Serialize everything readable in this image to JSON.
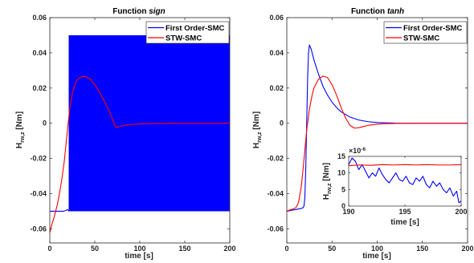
{
  "chart_data": [
    {
      "type": "line",
      "title_prefix": "Function",
      "title_emph": "sign",
      "xlabel": "time [s]",
      "ylabel_main": "H",
      "ylabel_sub": "rw,z",
      "ylabel_unit": " [Nm]",
      "xlim": [
        0,
        200
      ],
      "ylim": [
        -0.068,
        0.06
      ],
      "xticks": [
        0,
        50,
        100,
        150,
        200
      ],
      "xtick_labels": [
        "0",
        "50",
        "100",
        "150",
        "200"
      ],
      "yticks": [
        -0.06,
        -0.04,
        -0.02,
        0,
        0.02,
        0.04,
        0.06
      ],
      "ytick_labels": [
        "-0.06",
        "-0.04",
        "-0.02",
        "0",
        "0.02",
        "0.04",
        "0.06"
      ],
      "legend_position": "top-right",
      "series": [
        {
          "name": "First Order-SMC",
          "color": "#0000ff",
          "x": [
            0,
            5,
            10,
            15,
            18,
            20
          ],
          "y": [
            -0.05,
            -0.05,
            -0.05,
            -0.05,
            -0.0495,
            -0.049
          ],
          "chattering_band": {
            "x_start": 21,
            "x_end": 200,
            "y_min": -0.05,
            "y_max": 0.05
          }
        },
        {
          "name": "STW-SMC",
          "color": "#ff0000",
          "x": [
            0,
            2,
            5,
            8,
            10,
            13,
            16,
            18,
            20,
            22,
            25,
            28,
            30,
            35,
            40,
            45,
            50,
            55,
            60,
            65,
            70,
            72,
            74,
            76,
            80,
            85,
            90,
            100,
            110,
            120,
            140,
            160,
            180,
            200
          ],
          "y": [
            -0.062,
            -0.058,
            -0.053,
            -0.047,
            -0.042,
            -0.033,
            -0.022,
            -0.012,
            -0.002,
            0.008,
            0.017,
            0.022,
            0.0245,
            0.0265,
            0.0265,
            0.025,
            0.022,
            0.018,
            0.013,
            0.008,
            0.002,
            -0.001,
            -0.0025,
            -0.002,
            -0.0015,
            -0.001,
            -0.0007,
            -0.0004,
            -0.0002,
            -0.0001,
            0,
            0,
            0,
            0
          ]
        }
      ]
    },
    {
      "type": "line",
      "title_prefix": "Function",
      "title_emph": "tanh",
      "xlabel": "time [s]",
      "ylabel_main": "H",
      "ylabel_sub": "rw,z",
      "ylabel_unit": " [Nm]",
      "xlim": [
        0,
        200
      ],
      "ylim": [
        -0.068,
        0.06
      ],
      "xticks": [
        0,
        50,
        100,
        150,
        200
      ],
      "xtick_labels": [
        "0",
        "50",
        "100",
        "150",
        "200"
      ],
      "yticks": [
        -0.06,
        -0.04,
        -0.02,
        0,
        0.02,
        0.04,
        0.06
      ],
      "ytick_labels": [
        "-0.06",
        "-0.04",
        "-0.02",
        "0",
        "0.02",
        "0.04",
        "0.06"
      ],
      "legend_position": "top-right",
      "series": [
        {
          "name": "First Order-SMC",
          "color": "#0000ff",
          "x": [
            0,
            5,
            10,
            15,
            18,
            19,
            20,
            21,
            22,
            23,
            24,
            25,
            27,
            30,
            35,
            40,
            45,
            50,
            55,
            60,
            70,
            80,
            90,
            100,
            120,
            140,
            160,
            200
          ],
          "y": [
            -0.05,
            -0.0495,
            -0.049,
            -0.0485,
            -0.048,
            -0.047,
            -0.042,
            -0.025,
            0.0,
            0.025,
            0.04,
            0.0445,
            0.042,
            0.036,
            0.028,
            0.021,
            0.016,
            0.012,
            0.009,
            0.0065,
            0.0035,
            0.0018,
            0.0009,
            0.0004,
            0.0001,
            3e-05,
            1e-05,
            0.0
          ]
        },
        {
          "name": "STW-SMC",
          "color": "#ff0000",
          "x": [
            0,
            2,
            5,
            8,
            10,
            13,
            16,
            18,
            20,
            22,
            25,
            28,
            30,
            35,
            40,
            45,
            50,
            55,
            60,
            65,
            70,
            75,
            80,
            85,
            90,
            100,
            110,
            120,
            140,
            160,
            180,
            200
          ],
          "y": [
            -0.05,
            -0.0495,
            -0.049,
            -0.0485,
            -0.048,
            -0.045,
            -0.036,
            -0.026,
            -0.015,
            -0.004,
            0.008,
            0.016,
            0.02,
            0.025,
            0.0268,
            0.026,
            0.022,
            0.016,
            0.009,
            0.003,
            -0.0012,
            -0.0028,
            -0.0025,
            -0.0018,
            -0.0012,
            -0.0005,
            -0.0002,
            -0.0001,
            0,
            0,
            0,
            0
          ]
        }
      ],
      "inset": {
        "xlim": [
          190,
          200
        ],
        "ylim": [
          0,
          15
        ],
        "scale_label": "×10",
        "scale_exp": "-6",
        "xticks": [
          190,
          195,
          200
        ],
        "xtick_labels": [
          "190",
          "195",
          "200"
        ],
        "yticks": [
          0,
          5,
          10,
          15
        ],
        "ytick_labels": [
          "0",
          "5",
          "10",
          "15"
        ],
        "xlabel": "time [s]",
        "ylabel_main": "H",
        "ylabel_sub": "rw,z",
        "ylabel_unit": " [Nm]",
        "series": [
          {
            "name": "First Order-SMC",
            "color": "#0000ff",
            "x": [
              190,
              190.3,
              190.6,
              190.9,
              191.2,
              191.5,
              191.8,
              192.1,
              192.4,
              192.7,
              193.0,
              193.3,
              193.6,
              193.9,
              194.2,
              194.5,
              194.8,
              195.1,
              195.4,
              195.7,
              196.0,
              196.3,
              196.6,
              196.9,
              197.2,
              197.5,
              197.8,
              198.1,
              198.4,
              198.7,
              199.0,
              199.3,
              199.6,
              199.8,
              200
            ],
            "y": [
              12.5,
              14.5,
              13.5,
              11.0,
              12.5,
              10.5,
              8.5,
              10.0,
              9.0,
              11.5,
              9.5,
              8.0,
              7.0,
              8.5,
              10.0,
              8.0,
              7.5,
              9.0,
              7.0,
              6.5,
              8.5,
              7.5,
              9.0,
              6.5,
              5.5,
              7.5,
              6.0,
              7.0,
              5.0,
              4.0,
              5.5,
              3.0,
              4.5,
              1.0,
              1.5
            ]
          },
          {
            "name": "STW-SMC",
            "color": "#ff0000",
            "x": [
              190,
              191,
              192,
              193,
              194,
              195,
              196,
              197,
              198,
              199,
              200
            ],
            "y": [
              12.2,
              12.4,
              12.3,
              12.5,
              12.4,
              12.5,
              12.4,
              12.5,
              12.4,
              12.4,
              12.5
            ]
          }
        ]
      }
    }
  ]
}
